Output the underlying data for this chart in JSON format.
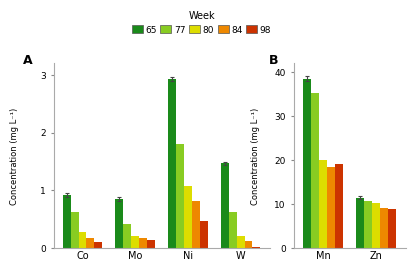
{
  "weeks": [
    65,
    77,
    80,
    84,
    98
  ],
  "colors": [
    "#1a8a1a",
    "#88cc22",
    "#dddd00",
    "#ee8800",
    "#cc3300"
  ],
  "panel_A": {
    "categories": [
      "Co",
      "Mo",
      "Ni",
      "W"
    ],
    "values": [
      [
        0.92,
        0.62,
        0.28,
        0.18,
        0.1
      ],
      [
        0.85,
        0.42,
        0.22,
        0.18,
        0.15
      ],
      [
        2.93,
        1.8,
        1.07,
        0.82,
        0.47
      ],
      [
        1.47,
        0.62,
        0.22,
        0.12,
        0.02
      ]
    ],
    "errors": [
      0.03,
      0.03,
      0.04,
      0.03
    ],
    "ylabel": "Concentration (mg L⁻¹)",
    "ylim": [
      0,
      3.2
    ],
    "yticks": [
      0,
      1,
      2,
      3
    ],
    "label": "A"
  },
  "panel_B": {
    "categories": [
      "Mn",
      "Zn"
    ],
    "values": [
      [
        38.5,
        35.2,
        20.0,
        18.5,
        19.2
      ],
      [
        11.5,
        10.8,
        10.2,
        9.2,
        9.0
      ]
    ],
    "errors": [
      0.6,
      0.3
    ],
    "ylabel": "Concentration (mg L⁻¹)",
    "ylim": [
      0,
      42
    ],
    "yticks": [
      0,
      10,
      20,
      30,
      40
    ],
    "label": "B"
  },
  "legend_title": "Week",
  "background": "#ffffff"
}
